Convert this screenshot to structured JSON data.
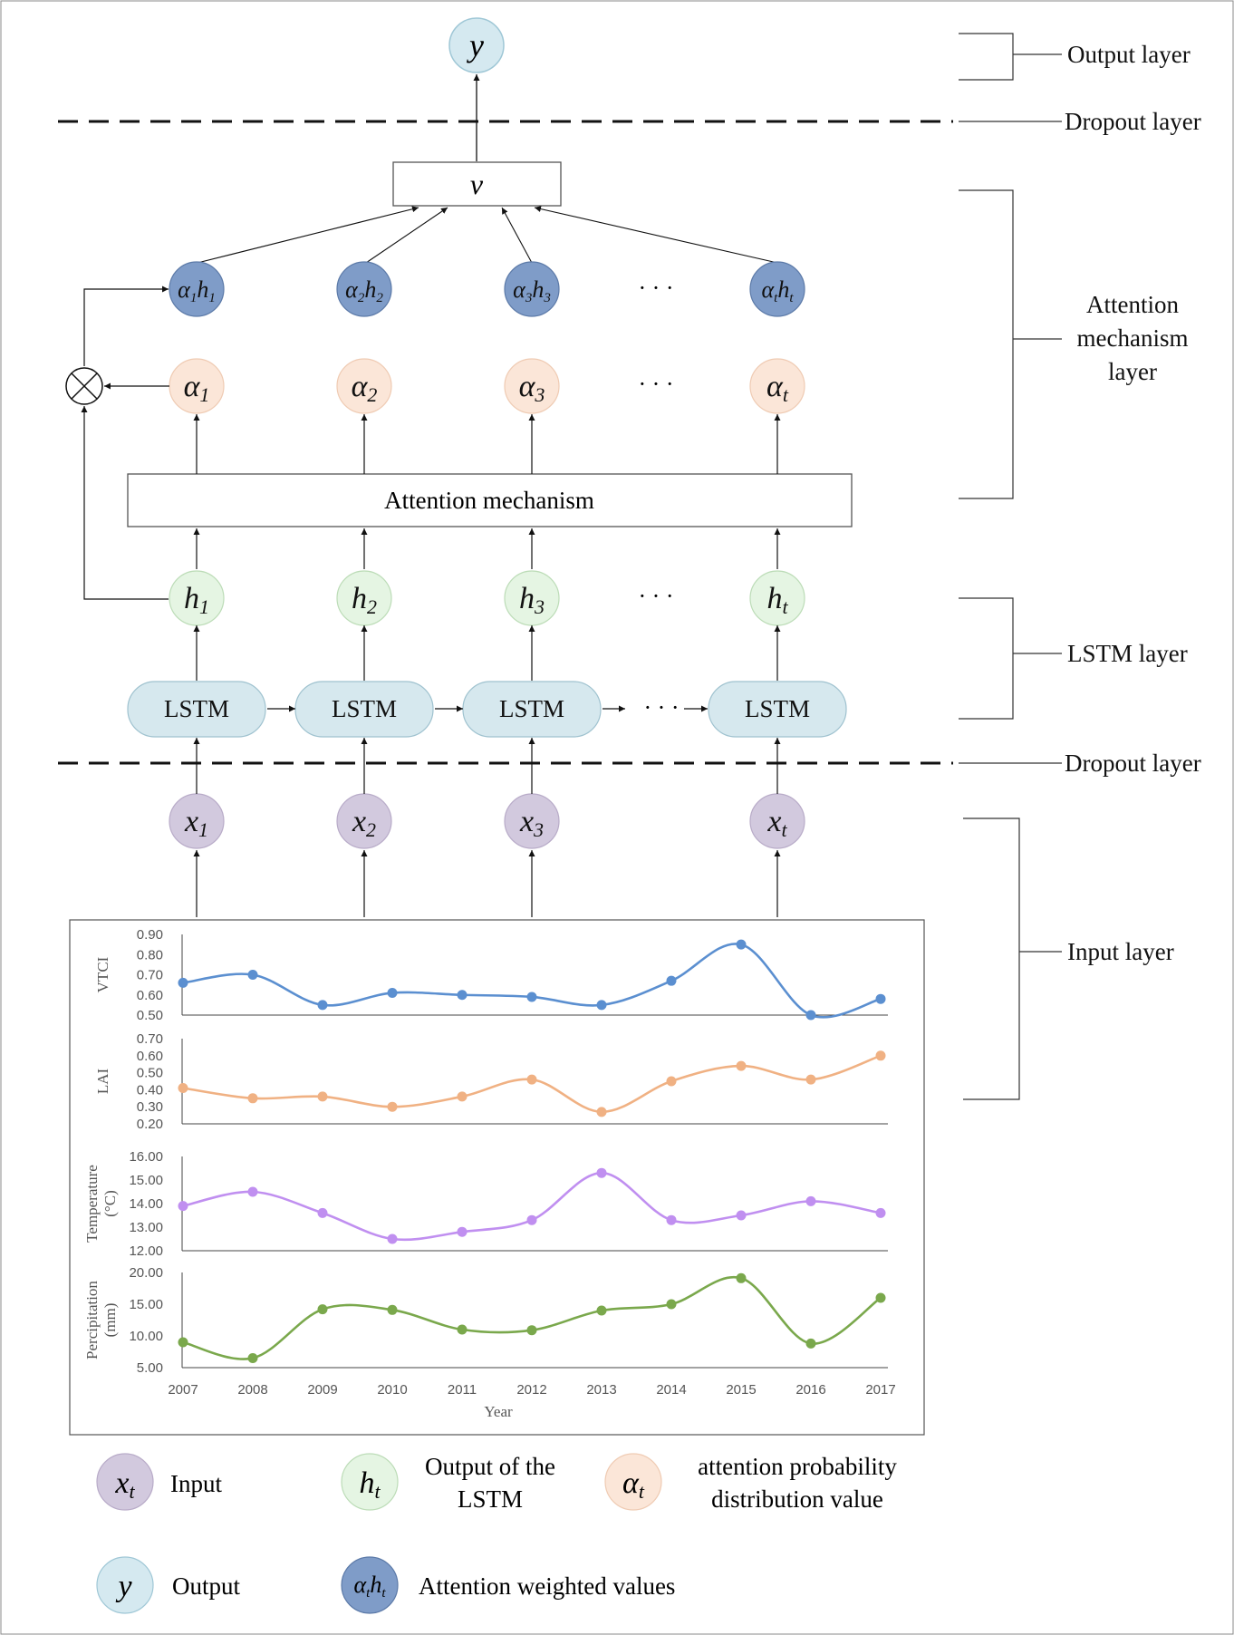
{
  "output_node": {
    "symbol": "y"
  },
  "v_node": {
    "label": "v"
  },
  "attention_box": {
    "label": "Attention mechanism"
  },
  "lstm_label": "LSTM",
  "weighted_nodes": [
    {
      "a": "α",
      "i1": "1",
      "h": "h",
      "i2": "1"
    },
    {
      "a": "α",
      "i1": "2",
      "h": "h",
      "i2": "2"
    },
    {
      "a": "α",
      "i1": "3",
      "h": "h",
      "i2": "3"
    },
    {
      "a": "α",
      "i1": "t",
      "h": "h",
      "i2": "t"
    }
  ],
  "alpha_nodes": [
    {
      "sym": "α",
      "sub": "1"
    },
    {
      "sym": "α",
      "sub": "2"
    },
    {
      "sym": "α",
      "sub": "3"
    },
    {
      "sym": "α",
      "sub": "t"
    }
  ],
  "hidden_nodes": [
    {
      "sym": "h",
      "sub": "1"
    },
    {
      "sym": "h",
      "sub": "2"
    },
    {
      "sym": "h",
      "sub": "3"
    },
    {
      "sym": "h",
      "sub": "t"
    }
  ],
  "input_nodes": [
    {
      "sym": "x",
      "sub": "1"
    },
    {
      "sym": "x",
      "sub": "2"
    },
    {
      "sym": "x",
      "sub": "3"
    },
    {
      "sym": "x",
      "sub": "t"
    }
  ],
  "ellipsis": "· · ·",
  "layers": {
    "output": "Output layer",
    "dropout": "Dropout layer",
    "attention": [
      "Attention",
      "mechanism",
      "layer"
    ],
    "lstm": "LSTM layer",
    "input": "Input layer"
  },
  "legend": {
    "input": {
      "sym": "x",
      "sub": "t",
      "text": "Input"
    },
    "lstm_out": {
      "sym": "h",
      "sub": "t",
      "text": [
        "Output of the",
        "LSTM"
      ]
    },
    "attn_prob": {
      "sym": "α",
      "sub": "t",
      "text": [
        "attention probability",
        "distribution value"
      ]
    },
    "output": {
      "sym": "y",
      "text": "Output"
    },
    "weighted": {
      "a": "α",
      "i1": "t",
      "h": "h",
      "i2": "t",
      "text": "Attention weighted values"
    }
  },
  "colors": {
    "output": "#d5e9f0",
    "weighted": "#7f9cc8",
    "alpha": "#fbe6d8",
    "hidden": "#e5f5e3",
    "lstm": "#d6e8ee",
    "input": "#d2c9de",
    "stroke": "#333333"
  },
  "chart_data": [
    {
      "type": "line",
      "ylabel": [
        "VTCI"
      ],
      "x": [
        2007,
        2008,
        2009,
        2010,
        2011,
        2012,
        2013,
        2014,
        2015,
        2016,
        2017
      ],
      "values": [
        0.66,
        0.7,
        0.55,
        0.61,
        0.6,
        0.59,
        0.55,
        0.67,
        0.85,
        0.5,
        0.58
      ],
      "ylim": [
        0.5,
        0.9
      ],
      "yticks": [
        "0.50",
        "0.60",
        "0.70",
        "0.80",
        "0.90"
      ],
      "color": "#5b8fd0"
    },
    {
      "type": "line",
      "ylabel": [
        "LAI"
      ],
      "x": [
        2007,
        2008,
        2009,
        2010,
        2011,
        2012,
        2013,
        2014,
        2015,
        2016,
        2017
      ],
      "values": [
        0.41,
        0.35,
        0.36,
        0.3,
        0.36,
        0.46,
        0.27,
        0.45,
        0.54,
        0.46,
        0.6
      ],
      "ylim": [
        0.2,
        0.7
      ],
      "yticks": [
        "0.20",
        "0.30",
        "0.40",
        "0.50",
        "0.60",
        "0.70"
      ],
      "color": "#f0b183"
    },
    {
      "type": "line",
      "ylabel": [
        "Temperature",
        "(°C)"
      ],
      "x": [
        2007,
        2008,
        2009,
        2010,
        2011,
        2012,
        2013,
        2014,
        2015,
        2016,
        2017
      ],
      "values": [
        13.9,
        14.5,
        13.6,
        12.5,
        12.8,
        13.3,
        15.3,
        13.3,
        13.5,
        14.1,
        13.6
      ],
      "ylim": [
        12.0,
        16.0
      ],
      "yticks": [
        "12.00",
        "13.00",
        "14.00",
        "15.00",
        "16.00"
      ],
      "color": "#c08ff0"
    },
    {
      "type": "line",
      "ylabel": [
        "Percipitation",
        "(mm)"
      ],
      "x": [
        2007,
        2008,
        2009,
        2010,
        2011,
        2012,
        2013,
        2014,
        2015,
        2016,
        2017
      ],
      "values": [
        9.0,
        6.5,
        14.2,
        14.1,
        11.0,
        10.9,
        14.0,
        15.0,
        19.1,
        8.8,
        16.0
      ],
      "ylim": [
        5.0,
        20.0
      ],
      "yticks": [
        "5.00",
        "10.00",
        "15.00",
        "20.00"
      ],
      "color": "#7aa84c"
    }
  ],
  "chart_xticks": [
    "2007",
    "2008",
    "2009",
    "2010",
    "2011",
    "2012",
    "2013",
    "2014",
    "2015",
    "2016",
    "2017"
  ],
  "chart_xlabel": "Year"
}
